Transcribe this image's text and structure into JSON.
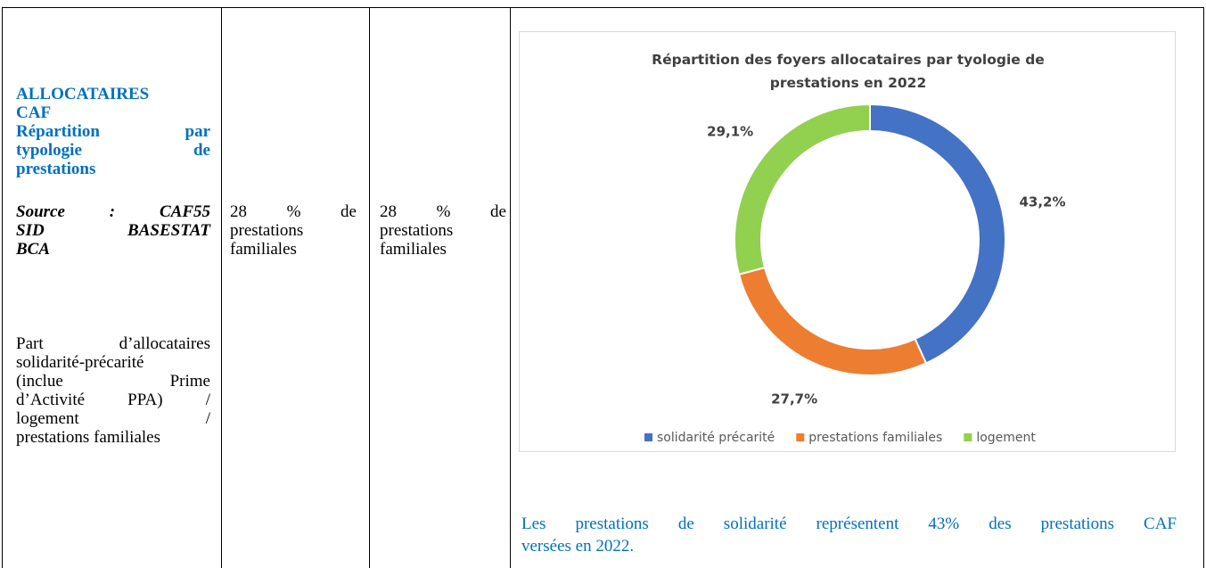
{
  "column1": {
    "heading": [
      "ALLOCATAIRES",
      "CAF",
      "Répartition par",
      "typologie de",
      "prestations"
    ],
    "source": [
      "Source : CAF55",
      "SID BASESTAT",
      "BCA"
    ],
    "description": [
      "Part d’allocataires",
      "solidarité-précarité",
      "(inclue Prime",
      "d’Activité PPA) /",
      "logement /",
      "prestations familiales"
    ]
  },
  "column2": {
    "lines": [
      "28 % de",
      "prestations",
      "familiales"
    ]
  },
  "column3": {
    "lines": [
      "28 % de",
      "prestations",
      "familiales"
    ]
  },
  "chart_data": {
    "type": "donut",
    "title": "Répartition des foyers allocataires par tyologie de prestations en 2022",
    "categories": [
      "solidarité précarité",
      "prestations familiales",
      "logement"
    ],
    "values": [
      43.2,
      27.7,
      29.1
    ],
    "value_labels": [
      "43,2%",
      "27,7%",
      "29,1%"
    ],
    "colors": [
      "#4472c4",
      "#ed7d31",
      "#92d050"
    ],
    "legend": "bottom"
  },
  "caption": [
    "Les prestations de solidarité représentent 43% des prestations CAF",
    "versées en 2022."
  ]
}
